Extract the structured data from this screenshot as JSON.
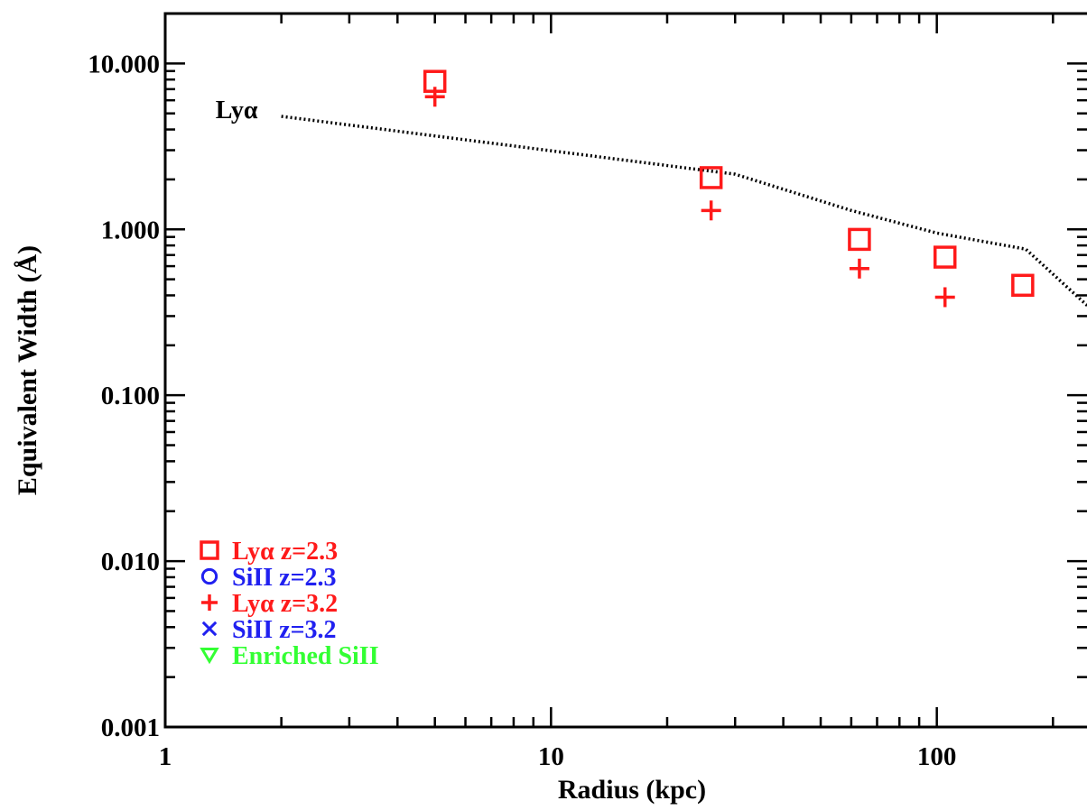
{
  "chart_data": {
    "type": "scatter",
    "xlabel": "Radius (kpc)",
    "ylabel": "Equivalent Width  (Å)",
    "xscale": "log",
    "yscale": "log",
    "xlim": [
      1,
      260
    ],
    "ylim": [
      0.001,
      20
    ],
    "x_ticks": [
      {
        "value": 1,
        "label": "1"
      },
      {
        "value": 10,
        "label": "10"
      },
      {
        "value": 100,
        "label": "100"
      }
    ],
    "y_ticks": [
      {
        "value": 0.001,
        "label": "0.001"
      },
      {
        "value": 0.01,
        "label": "0.010"
      },
      {
        "value": 0.1,
        "label": "0.100"
      },
      {
        "value": 1,
        "label": "1.000"
      },
      {
        "value": 10,
        "label": "10.000"
      }
    ],
    "annotations": [
      {
        "text": "Lyα",
        "x": 1.35,
        "y": 5.3
      }
    ],
    "series": [
      {
        "name": "Lyα z=2.3",
        "marker": "square",
        "color": "#ff1a1a",
        "x": [
          5,
          26,
          63,
          105,
          167
        ],
        "y": [
          7.8,
          2.05,
          0.87,
          0.68,
          0.46
        ]
      },
      {
        "name": "SiII  z=2.3",
        "marker": "circle",
        "color": "#2020f0",
        "x": [],
        "y": []
      },
      {
        "name": "Lyα z=3.2",
        "marker": "plus",
        "color": "#ff1a1a",
        "x": [
          5,
          26,
          63,
          105
        ],
        "y": [
          6.3,
          1.3,
          0.58,
          0.39
        ]
      },
      {
        "name": "SiII  z=3.2",
        "marker": "x",
        "color": "#2020f0",
        "x": [],
        "y": []
      },
      {
        "name": "Enriched SiII",
        "marker": "triangle-down",
        "color": "#33ff33",
        "x": [],
        "y": []
      },
      {
        "marker": "dotted-line",
        "color": "#000000",
        "x": [
          2,
          30,
          60,
          100,
          170,
          255
        ],
        "y": [
          4.8,
          2.15,
          1.3,
          0.95,
          0.76,
          0.32
        ]
      }
    ],
    "legend_position": "bottom-left"
  }
}
